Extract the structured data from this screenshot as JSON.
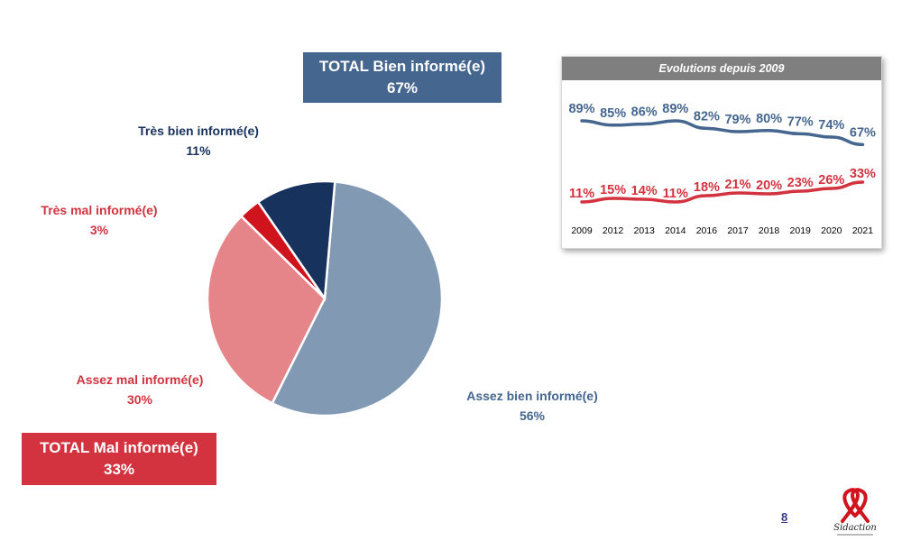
{
  "colors": {
    "good_dark": "#17325c",
    "good": "#44668f",
    "good_light": "#8199b3",
    "bad_dark": "#d0141e",
    "bad": "#d2333f",
    "bad_light": "#e58489",
    "header_grey": "#7f7f7f"
  },
  "totals": {
    "good": {
      "title": "TOTAL Bien informé(e)",
      "value": "67%"
    },
    "bad": {
      "title": "TOTAL Mal informé(e)",
      "value": "33%"
    }
  },
  "labels": {
    "tres_bien": {
      "name": "Très bien informé(e)",
      "value": "11%"
    },
    "tres_mal": {
      "name": "Très mal informé(e)",
      "value": "3%"
    },
    "assez_mal": {
      "name": "Assez mal informé(e)",
      "value": "30%"
    },
    "assez_bien": {
      "name": "Assez bien informé(e)",
      "value": "56%"
    }
  },
  "chart_data": [
    {
      "type": "pie",
      "slices": [
        {
          "label": "Assez bien informé(e)",
          "value": 56,
          "color": "#8199b3"
        },
        {
          "label": "Assez mal informé(e)",
          "value": 30,
          "color": "#e58489"
        },
        {
          "label": "Très mal informé(e)",
          "value": 3,
          "color": "#d0141e"
        },
        {
          "label": "Très bien informé(e)",
          "value": 11,
          "color": "#17325c"
        }
      ]
    },
    {
      "type": "line",
      "title": "Evolutions depuis 2009",
      "categories": [
        "2009",
        "2012",
        "2013",
        "2014",
        "2016",
        "2017",
        "2018",
        "2019",
        "2020",
        "2021"
      ],
      "series": [
        {
          "values": [
            89,
            85,
            86,
            89,
            82,
            79,
            80,
            77,
            74,
            67
          ],
          "color": "#44668f"
        },
        {
          "values": [
            11,
            15,
            14,
            11,
            18,
            21,
            20,
            23,
            26,
            33
          ],
          "color": "#d2333f"
        }
      ],
      "grid": false,
      "legend": "none"
    }
  ],
  "page_number": "8"
}
